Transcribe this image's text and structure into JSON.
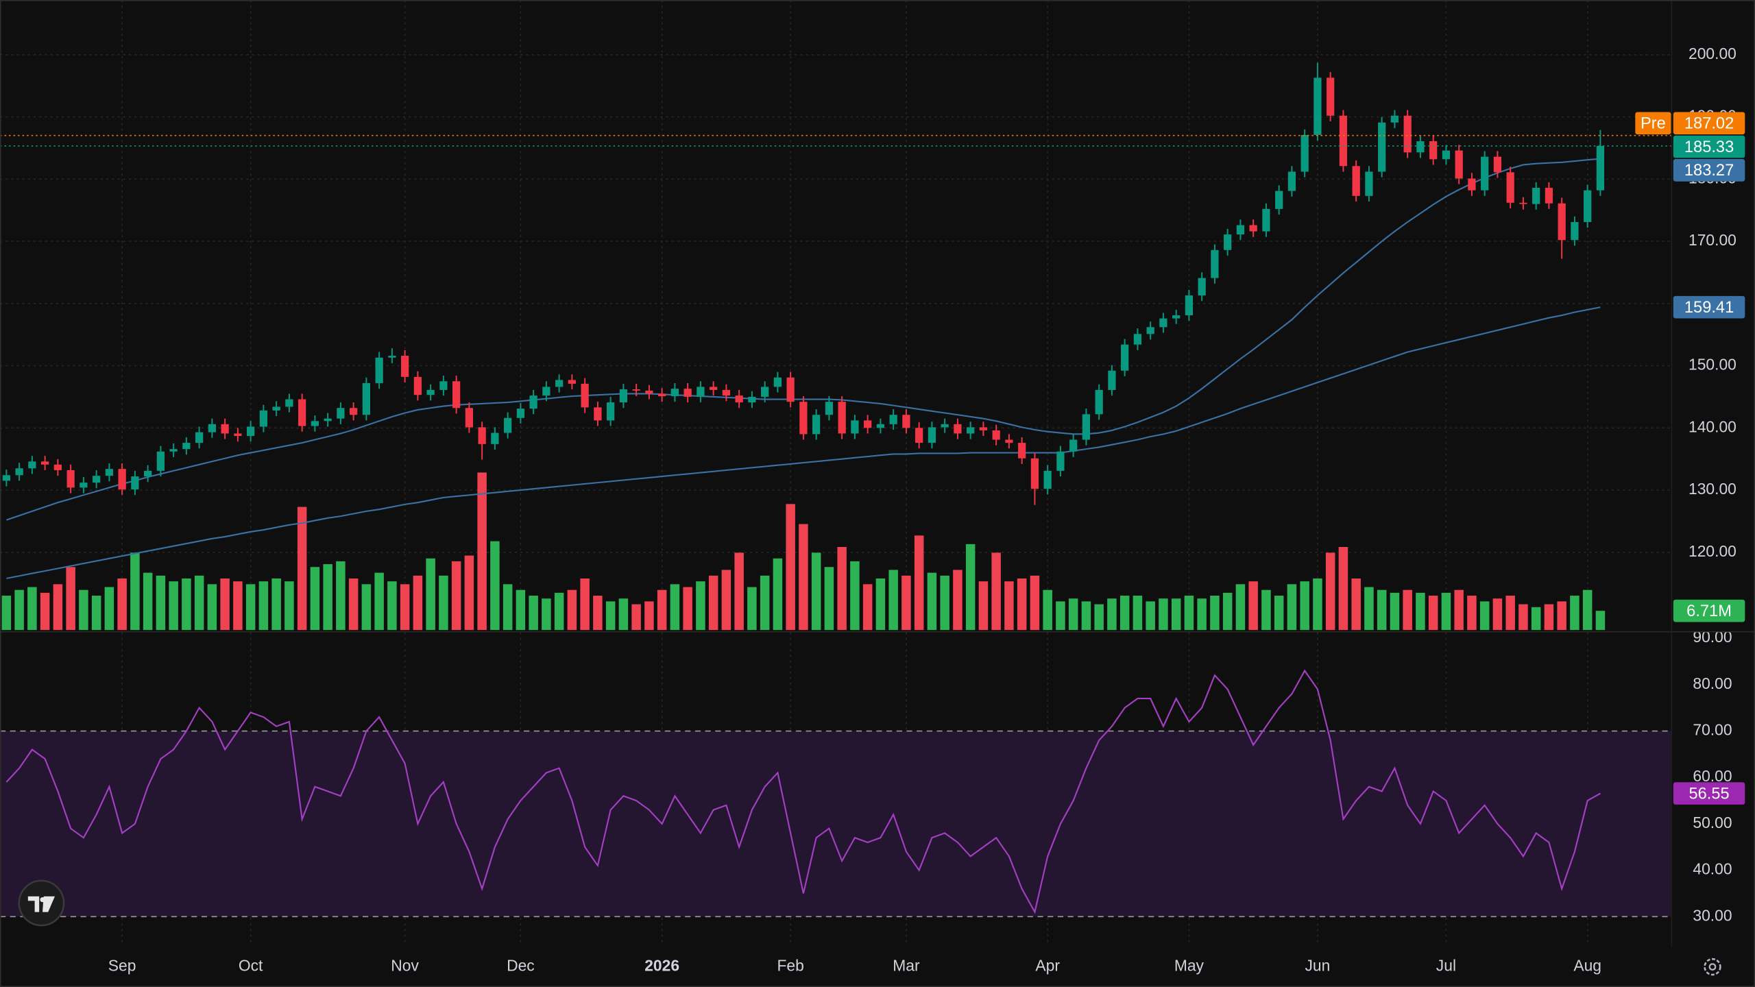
{
  "chart_data": {
    "type": "candlestick",
    "open": [
      131.5,
      132.4,
      133.5,
      134.6,
      134.1,
      133.2,
      130.4,
      131.2,
      132.3,
      133.4,
      130.1,
      132.2,
      133.1,
      136.2,
      136.6,
      137.6,
      139.3,
      140.6,
      139.1,
      138.7,
      140.2,
      142.8,
      143.4,
      144.6,
      140.3,
      141.1,
      141.5,
      143.2,
      142.1,
      147.2,
      151.3,
      151.6,
      148.2,
      145.3,
      146.1,
      147.5,
      143.2,
      140.1,
      137.4,
      139.2,
      141.6,
      143.1,
      145.2,
      146.6,
      147.7,
      147.1,
      143.3,
      141.2,
      144.1,
      146.2,
      146.0,
      145.5,
      145.1,
      146.3,
      145.0,
      146.6,
      146.1,
      145.2,
      144.1,
      145.0,
      146.6,
      148.1,
      144.2,
      139.0,
      142.1,
      144.2,
      139.1,
      141.2,
      140.0,
      140.6,
      142.1,
      140.0,
      137.6,
      140.1,
      140.6,
      139.1,
      140.1,
      139.6,
      138.1,
      137.6,
      135.1,
      130.2,
      133.1,
      136.2,
      138.1,
      142.2,
      146.1,
      149.2,
      153.4,
      155.1,
      156.2,
      157.6,
      158.1,
      161.3,
      164.1,
      168.6,
      171.1,
      172.6,
      171.6,
      175.2,
      178.1,
      181.2,
      187.1,
      196.3,
      190.2,
      182.1,
      177.3,
      181.2,
      189.1,
      190.2,
      184.3,
      186.1,
      183.2,
      184.6,
      180.1,
      178.2,
      183.6,
      181.1,
      176.2,
      176.0,
      178.6,
      176.1,
      170.2,
      173.1,
      178.2
    ],
    "high": [
      133.3,
      134.4,
      135.5,
      135.5,
      135.0,
      134.1,
      132.1,
      133.2,
      134.3,
      134.3,
      133.1,
      134.0,
      137.1,
      137.5,
      138.5,
      140.2,
      141.5,
      141.5,
      140.0,
      141.1,
      143.7,
      144.3,
      145.5,
      145.5,
      142.0,
      142.4,
      144.1,
      144.1,
      148.1,
      152.2,
      152.8,
      152.5,
      149.1,
      147.0,
      148.4,
      148.4,
      144.1,
      141.0,
      140.1,
      142.5,
      144.0,
      146.1,
      147.5,
      148.6,
      148.6,
      148.0,
      144.2,
      145.0,
      147.1,
      147.1,
      146.9,
      146.4,
      147.2,
      147.2,
      147.5,
      147.5,
      147.0,
      146.1,
      145.9,
      147.5,
      149.0,
      149.0,
      145.1,
      143.0,
      145.1,
      145.1,
      142.1,
      142.1,
      141.5,
      143.0,
      143.0,
      140.9,
      141.0,
      141.5,
      141.5,
      141.0,
      141.0,
      140.5,
      139.0,
      138.5,
      136.0,
      134.0,
      137.1,
      139.0,
      143.1,
      147.0,
      150.1,
      154.3,
      156.0,
      157.1,
      158.5,
      159.0,
      162.2,
      165.0,
      169.5,
      172.0,
      173.5,
      173.5,
      176.1,
      179.0,
      182.1,
      188.0,
      198.7,
      197.2,
      191.1,
      183.0,
      182.1,
      190.0,
      191.1,
      191.1,
      187.0,
      187.0,
      185.5,
      185.5,
      181.0,
      184.5,
      184.5,
      182.0,
      177.1,
      179.5,
      179.5,
      177.0,
      174.0,
      179.1,
      187.9
    ],
    "low": [
      130.6,
      131.5,
      132.6,
      133.2,
      132.3,
      129.5,
      129.5,
      130.3,
      131.4,
      129.2,
      129.2,
      131.3,
      132.2,
      135.3,
      135.7,
      136.7,
      138.4,
      138.2,
      137.8,
      137.8,
      139.3,
      141.9,
      142.5,
      139.4,
      139.4,
      140.2,
      140.6,
      141.2,
      141.2,
      146.3,
      150.4,
      147.3,
      144.4,
      144.4,
      145.2,
      142.3,
      139.2,
      134.9,
      136.5,
      138.3,
      140.7,
      142.2,
      144.3,
      145.7,
      146.2,
      142.4,
      140.3,
      140.3,
      143.2,
      145.1,
      144.6,
      144.2,
      144.2,
      144.1,
      144.1,
      145.2,
      144.3,
      143.2,
      143.2,
      144.1,
      145.7,
      143.3,
      138.1,
      138.1,
      141.2,
      138.2,
      138.2,
      139.1,
      139.1,
      139.7,
      139.1,
      136.7,
      136.7,
      139.2,
      138.2,
      138.2,
      138.7,
      137.2,
      136.7,
      134.2,
      127.6,
      129.3,
      132.2,
      135.3,
      137.2,
      141.3,
      145.2,
      148.3,
      152.5,
      154.2,
      155.3,
      156.7,
      157.2,
      160.4,
      163.2,
      167.7,
      170.2,
      170.7,
      170.7,
      174.3,
      177.2,
      180.3,
      186.2,
      189.3,
      181.2,
      176.4,
      176.4,
      180.3,
      188.2,
      183.4,
      183.4,
      182.3,
      182.3,
      179.2,
      177.3,
      177.3,
      180.2,
      175.3,
      175.1,
      175.1,
      175.2,
      167.2,
      169.3,
      172.2,
      177.3
    ],
    "close": [
      132.4,
      133.5,
      134.6,
      134.1,
      133.2,
      130.4,
      131.2,
      132.3,
      133.4,
      130.1,
      132.2,
      133.1,
      136.2,
      136.6,
      137.6,
      139.3,
      140.6,
      139.1,
      138.7,
      140.2,
      142.8,
      143.4,
      144.6,
      140.3,
      141.1,
      141.5,
      143.2,
      142.1,
      147.2,
      151.3,
      151.6,
      148.2,
      145.3,
      146.1,
      147.5,
      143.2,
      140.1,
      137.4,
      139.2,
      141.6,
      143.1,
      145.2,
      146.6,
      147.7,
      147.1,
      143.3,
      141.2,
      144.1,
      146.2,
      146.0,
      145.5,
      145.1,
      146.3,
      145.0,
      146.6,
      146.1,
      145.2,
      144.1,
      145.0,
      146.6,
      148.1,
      144.2,
      139.0,
      142.1,
      144.2,
      139.1,
      141.2,
      140.0,
      140.6,
      142.1,
      140.0,
      137.6,
      140.1,
      140.6,
      139.1,
      140.1,
      139.6,
      138.1,
      137.6,
      135.1,
      130.2,
      133.1,
      136.2,
      138.1,
      142.2,
      146.1,
      149.2,
      153.4,
      155.1,
      156.2,
      157.6,
      158.1,
      161.3,
      164.1,
      168.6,
      171.1,
      172.6,
      171.6,
      175.2,
      178.1,
      181.2,
      187.1,
      196.3,
      190.2,
      182.1,
      177.3,
      181.2,
      189.1,
      190.2,
      184.3,
      186.1,
      183.2,
      184.6,
      180.1,
      178.2,
      183.6,
      181.1,
      176.2,
      176.0,
      178.6,
      176.1,
      170.2,
      173.1,
      178.2,
      185.33
    ],
    "up_color": "#089981",
    "down_color": "#f23645",
    "xlim": [
      -0.5,
      129.5
    ],
    "xticks": [
      {
        "value": 9,
        "label": "Sep"
      },
      {
        "value": 19,
        "label": "Oct"
      },
      {
        "value": 31,
        "label": "Nov"
      },
      {
        "value": 40,
        "label": "Dec"
      },
      {
        "value": 51,
        "label": "2026"
      },
      {
        "value": 61,
        "label": "Feb"
      },
      {
        "value": 70,
        "label": "Mar"
      },
      {
        "value": 81,
        "label": "Apr"
      },
      {
        "value": 92,
        "label": "May"
      },
      {
        "value": 102,
        "label": "Jun"
      },
      {
        "value": 112,
        "label": "Jul"
      },
      {
        "value": 123,
        "label": "Aug"
      }
    ],
    "ylim": [
      107.5,
      208.8
    ],
    "yticks": [
      {
        "value": 120,
        "label": "120.00"
      },
      {
        "value": 130,
        "label": "130.00"
      },
      {
        "value": 140,
        "label": "140.00"
      },
      {
        "value": 150,
        "label": "150.00"
      },
      {
        "value": 160,
        "label": "160.00"
      },
      {
        "value": 170,
        "label": "170.00"
      },
      {
        "value": 180,
        "label": "180.00"
      },
      {
        "value": 190,
        "label": "190.00"
      },
      {
        "value": 200,
        "label": "200.00"
      }
    ],
    "grid": true,
    "premarket": {
      "label": "Pre",
      "value": 187.02,
      "color": "#f57c00"
    },
    "moving_averages": [
      {
        "color": "#3a72a6",
        "values": [
          125.2,
          125.9,
          126.6,
          127.3,
          128.0,
          128.6,
          129.2,
          129.8,
          130.4,
          131.0,
          131.5,
          132.1,
          132.6,
          133.1,
          133.6,
          134.1,
          134.6,
          135.1,
          135.6,
          136.0,
          136.4,
          136.8,
          137.2,
          137.6,
          138.1,
          138.6,
          139.1,
          139.7,
          140.4,
          141.1,
          141.8,
          142.4,
          142.9,
          143.2,
          143.5,
          143.7,
          143.8,
          143.9,
          144.0,
          144.1,
          144.3,
          144.5,
          144.7,
          144.9,
          145.1,
          145.2,
          145.3,
          145.4,
          145.5,
          145.5,
          145.5,
          145.4,
          145.3,
          145.2,
          145.1,
          145.0,
          144.9,
          144.8,
          144.7,
          144.6,
          144.6,
          144.6,
          144.6,
          144.6,
          144.6,
          144.5,
          144.3,
          144.1,
          143.9,
          143.6,
          143.3,
          143.0,
          142.7,
          142.4,
          142.1,
          141.8,
          141.5,
          141.1,
          140.6,
          140.1,
          139.7,
          139.4,
          139.2,
          139.0,
          139.0,
          139.2,
          139.6,
          140.2,
          140.9,
          141.7,
          142.5,
          143.5,
          144.8,
          146.3,
          147.9,
          149.5,
          151.1,
          152.6,
          154.2,
          155.8,
          157.4,
          159.4,
          161.3,
          163.1,
          164.9,
          166.6,
          168.3,
          170.0,
          171.6,
          173.1,
          174.5,
          175.9,
          177.2,
          178.3,
          179.3,
          180.2,
          181.0,
          181.7,
          182.3,
          182.5,
          182.6,
          182.7,
          182.9,
          183.1,
          183.27
        ]
      },
      {
        "color": "#3a72a6",
        "values": [
          115.8,
          116.2,
          116.6,
          117.0,
          117.4,
          117.8,
          118.2,
          118.6,
          119.0,
          119.4,
          119.8,
          120.2,
          120.6,
          121.0,
          121.4,
          121.8,
          122.2,
          122.5,
          122.9,
          123.3,
          123.6,
          124.0,
          124.4,
          124.7,
          125.1,
          125.5,
          125.8,
          126.2,
          126.6,
          126.9,
          127.3,
          127.7,
          128.0,
          128.4,
          128.8,
          129.0,
          129.2,
          129.4,
          129.6,
          129.8,
          130.0,
          130.2,
          130.4,
          130.6,
          130.8,
          131.0,
          131.2,
          131.4,
          131.6,
          131.8,
          132.0,
          132.2,
          132.4,
          132.6,
          132.8,
          133.0,
          133.2,
          133.4,
          133.6,
          133.8,
          134.0,
          134.2,
          134.4,
          134.6,
          134.8,
          135.0,
          135.2,
          135.4,
          135.6,
          135.8,
          135.8,
          135.9,
          135.9,
          135.9,
          135.9,
          136.0,
          136.0,
          136.0,
          136.0,
          136.0,
          136.0,
          136.0,
          136.0,
          136.3,
          136.6,
          136.9,
          137.3,
          137.7,
          138.1,
          138.6,
          139.0,
          139.5,
          140.2,
          140.9,
          141.6,
          142.3,
          143.1,
          143.8,
          144.5,
          145.2,
          145.9,
          146.6,
          147.3,
          148.0,
          148.7,
          149.4,
          150.1,
          150.8,
          151.5,
          152.2,
          152.7,
          153.2,
          153.7,
          154.2,
          154.7,
          155.2,
          155.7,
          156.2,
          156.7,
          157.2,
          157.7,
          158.1,
          158.6,
          159.0,
          159.41
        ]
      }
    ],
    "volume": {
      "ylim": [
        0,
        220
      ],
      "up_color": "#2db353",
      "down_color": "#ef4352",
      "last_label": "6.71M",
      "values": [
        12,
        14,
        15,
        13,
        16,
        22,
        14,
        12,
        15,
        18,
        27,
        20,
        19,
        17,
        18,
        19,
        16,
        18,
        17,
        16,
        17,
        18,
        17,
        43,
        22,
        23,
        24,
        18,
        16,
        20,
        17,
        16,
        19,
        25,
        19,
        24,
        26,
        55,
        31,
        16,
        14,
        12,
        11,
        13,
        14,
        18,
        12,
        10,
        11,
        9,
        10,
        14,
        16,
        15,
        17,
        19,
        21,
        27,
        15,
        19,
        25,
        44,
        37,
        27,
        22,
        29,
        24,
        16,
        18,
        21,
        19,
        33,
        20,
        19,
        21,
        30,
        17,
        27,
        17,
        18,
        19,
        14,
        10,
        11,
        10,
        9,
        11,
        12,
        12,
        10,
        11,
        11,
        12,
        11,
        12,
        13,
        16,
        17,
        14,
        12,
        16,
        17,
        18,
        27,
        29,
        18,
        15,
        14,
        13,
        14,
        13,
        12,
        13,
        14,
        12,
        10,
        11,
        12,
        9,
        8,
        9,
        10,
        12,
        14,
        6.71
      ]
    },
    "rsi": {
      "color": "#a53fc4",
      "tag_color": "#9c27b0",
      "band_color": "#241530",
      "bands": [
        30,
        70
      ],
      "ylim": [
        24,
        92
      ],
      "yticks": [
        {
          "value": 30,
          "label": "30.00"
        },
        {
          "value": 40,
          "label": "40.00"
        },
        {
          "value": 50,
          "label": "50.00"
        },
        {
          "value": 60,
          "label": "60.00"
        },
        {
          "value": 70,
          "label": "70.00"
        },
        {
          "value": 80,
          "label": "80.00"
        },
        {
          "value": 90,
          "label": "90.00"
        }
      ],
      "values": [
        59,
        62,
        66,
        64,
        57,
        49,
        47,
        52,
        58,
        48,
        50,
        58,
        64,
        66,
        70,
        75,
        72,
        66,
        70,
        74,
        73,
        71,
        72,
        51,
        58,
        57,
        56,
        62,
        70,
        73,
        68,
        63,
        50,
        56,
        59,
        50,
        44,
        36,
        45,
        51,
        55,
        58,
        61,
        62,
        55,
        45,
        41,
        53,
        56,
        55,
        53,
        50,
        56,
        52,
        48,
        53,
        54,
        45,
        53,
        58,
        61,
        48,
        35,
        47,
        49,
        42,
        47,
        46,
        47,
        52,
        44,
        40,
        47,
        48,
        46,
        43,
        45,
        47,
        43,
        36,
        31,
        43,
        50,
        55,
        62,
        68,
        71,
        75,
        77,
        77,
        71,
        77,
        72,
        75,
        82,
        79,
        73,
        67,
        71,
        75,
        78,
        83,
        79,
        68,
        51,
        55,
        58,
        57,
        62,
        54,
        50,
        57,
        55,
        48,
        51,
        54,
        50,
        47,
        43,
        48,
        46,
        36,
        44,
        55,
        56.55
      ]
    }
  }
}
